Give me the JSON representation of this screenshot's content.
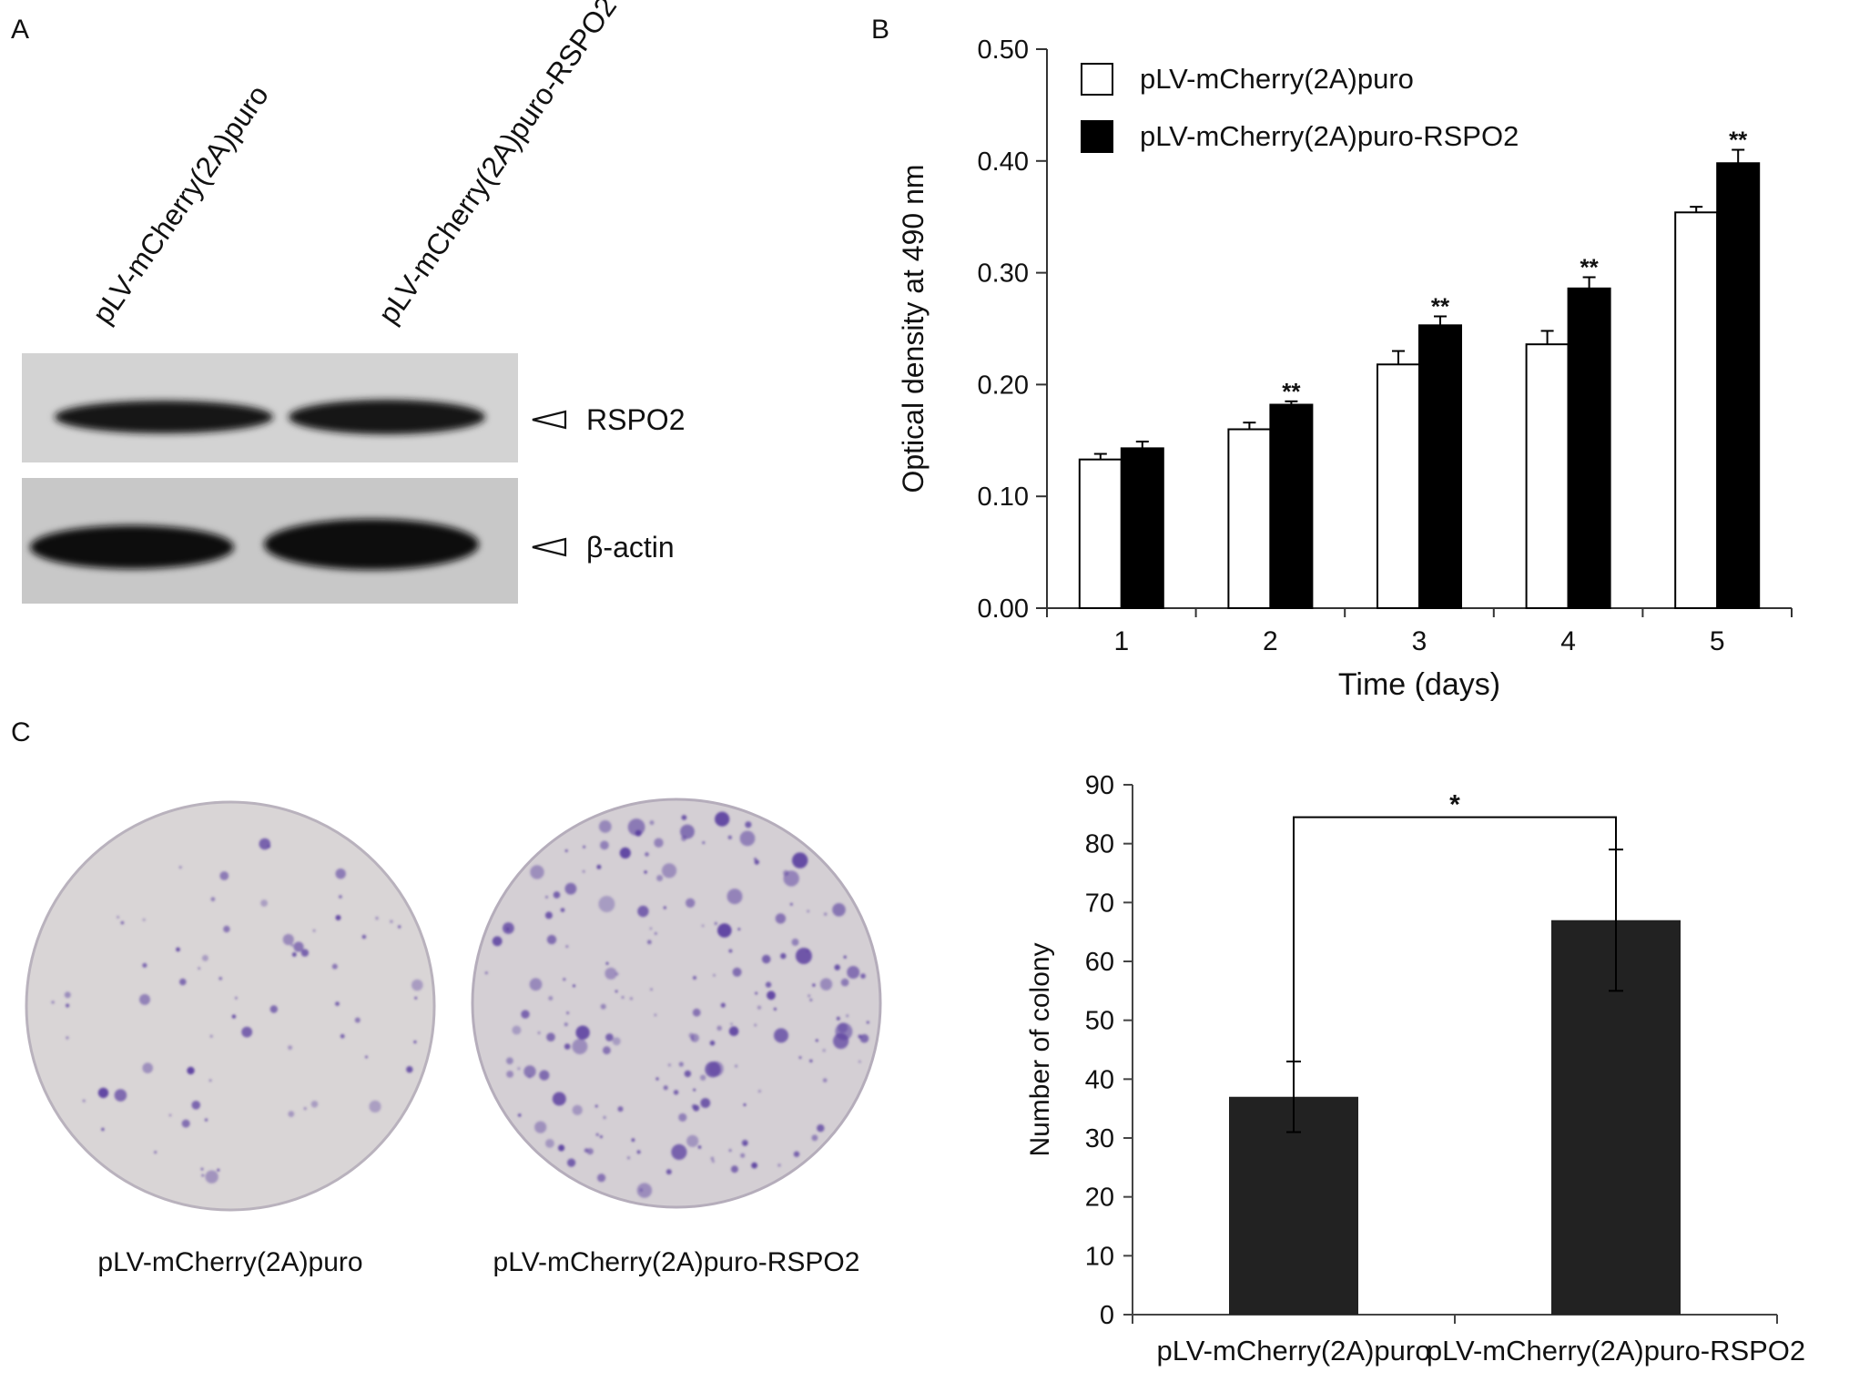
{
  "panels": {
    "a": {
      "letter": "A",
      "lanes": [
        "pLV-mCherry(2A)puro",
        "pLV-mCherry(2A)puro-RSPO2"
      ],
      "bands": [
        {
          "label": "RSPO2",
          "present": [
            false,
            true
          ]
        },
        {
          "label": "β-actin",
          "present": [
            true,
            true
          ]
        }
      ],
      "colors": {
        "blot_background": "#d2d2d2",
        "band": "#121212"
      }
    },
    "b": {
      "letter": "B",
      "chart_data": {
        "type": "bar",
        "categories": [
          "1",
          "2",
          "3",
          "4",
          "5"
        ],
        "series": [
          {
            "name": "pLV-mCherry(2A)puro",
            "values": [
              0.133,
              0.16,
              0.218,
              0.236,
              0.354
            ],
            "errors": [
              0.005,
              0.006,
              0.012,
              0.012,
              0.005
            ],
            "fill": "#ffffff"
          },
          {
            "name": "pLV-mCherry(2A)puro-RSPO2",
            "values": [
              0.143,
              0.182,
              0.253,
              0.286,
              0.398
            ],
            "errors": [
              0.006,
              0.003,
              0.008,
              0.01,
              0.012
            ],
            "fill": "#000000"
          }
        ],
        "annotations": [
          "",
          "**",
          "**",
          "**",
          "**"
        ],
        "xlabel": "Time (days)",
        "ylabel": "Optical density at 490 nm",
        "ylim": [
          0,
          0.5
        ],
        "yticks": [
          "0.00",
          "0.10",
          "0.20",
          "0.30",
          "0.40",
          "0.50"
        ],
        "grid": false,
        "legend": "top-left"
      }
    },
    "c": {
      "letter": "C",
      "dishes": [
        {
          "label": "pLV-mCherry(2A)puro",
          "colonies": "sparse"
        },
        {
          "label": "pLV-mCherry(2A)puro-RSPO2",
          "colonies": "dense"
        }
      ],
      "colors": {
        "dish": "#d6d2d4",
        "colony": "#5a3fa0"
      },
      "chart_data": {
        "type": "bar",
        "categories": [
          "pLV-mCherry(2A)puro",
          "pLV-mCherry(2A)puro-RSPO2"
        ],
        "values": [
          37,
          67
        ],
        "errors": [
          6,
          12
        ],
        "ylabel": "Number of colony",
        "xlabel": "",
        "ylim": [
          0,
          90
        ],
        "yticks": [
          "0",
          "10",
          "20",
          "30",
          "40",
          "50",
          "60",
          "70",
          "80",
          "90"
        ],
        "significance": "*",
        "bar_color": "#222222",
        "grid": false
      }
    }
  }
}
